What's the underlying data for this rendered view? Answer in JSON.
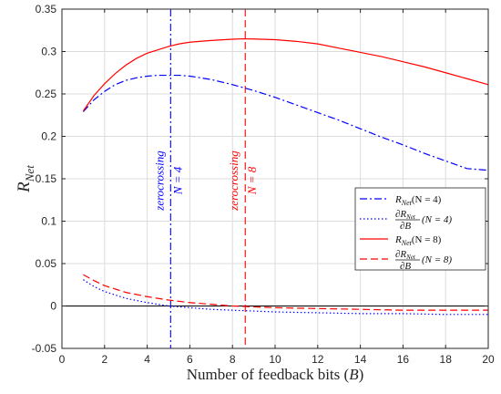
{
  "chart_data": {
    "type": "line",
    "title": "",
    "xlabel": "Number of feedback bits (B)",
    "ylabel": "R_Net",
    "xlim": [
      0,
      20
    ],
    "ylim": [
      -0.05,
      0.35
    ],
    "xticks": [
      0,
      2,
      4,
      6,
      8,
      10,
      12,
      14,
      16,
      18,
      20
    ],
    "yticks": [
      -0.05,
      0,
      0.05,
      0.1,
      0.15,
      0.2,
      0.25,
      0.3,
      0.35
    ],
    "xtick_labels": [
      "0",
      "2",
      "4",
      "6",
      "8",
      "10",
      "12",
      "14",
      "16",
      "18",
      "20"
    ],
    "ytick_labels": [
      "-0.05",
      "0",
      "0.05",
      "0.1",
      "0.15",
      "0.2",
      "0.25",
      "0.3",
      "0.35"
    ],
    "grid": true,
    "legend_position": "right",
    "series": [
      {
        "name": "R_Net(N = 4)",
        "color": "#0000ff",
        "dash": "dashdot",
        "x": [
          1,
          1.5,
          2,
          2.5,
          3,
          3.5,
          4,
          4.5,
          5,
          5.5,
          6,
          7,
          8,
          9,
          10,
          11,
          12,
          13,
          14,
          15,
          16,
          17,
          18,
          19,
          20
        ],
        "y": [
          0.229,
          0.243,
          0.253,
          0.261,
          0.266,
          0.269,
          0.271,
          0.272,
          0.272,
          0.272,
          0.271,
          0.267,
          0.261,
          0.254,
          0.246,
          0.237,
          0.228,
          0.219,
          0.209,
          0.199,
          0.19,
          0.18,
          0.171,
          0.162,
          0.16
        ]
      },
      {
        "name": "∂R_Net/∂B (N = 4)",
        "color": "#0000ff",
        "dash": "dotted",
        "x": [
          1,
          1.5,
          2,
          3,
          4,
          5,
          6,
          7,
          8,
          9,
          10,
          12,
          14,
          16,
          18,
          20
        ],
        "y": [
          0.031,
          0.023,
          0.017,
          0.009,
          0.004,
          0.0,
          -0.002,
          -0.004,
          -0.005,
          -0.006,
          -0.007,
          -0.008,
          -0.009,
          -0.009,
          -0.01,
          -0.01
        ]
      },
      {
        "name": "R_Net(N = 8)",
        "color": "#ff0000",
        "dash": "solid",
        "x": [
          1,
          1.5,
          2,
          2.5,
          3,
          3.5,
          4,
          4.5,
          5,
          5.5,
          6,
          7,
          8,
          8.5,
          9,
          10,
          11,
          12,
          13,
          14,
          15,
          16,
          17,
          18,
          19,
          20
        ],
        "y": [
          0.23,
          0.248,
          0.262,
          0.274,
          0.284,
          0.292,
          0.298,
          0.302,
          0.306,
          0.309,
          0.311,
          0.313,
          0.3145,
          0.315,
          0.3148,
          0.314,
          0.312,
          0.309,
          0.304,
          0.299,
          0.294,
          0.288,
          0.282,
          0.275,
          0.268,
          0.261
        ]
      },
      {
        "name": "∂R_Net/∂B (N = 8)",
        "color": "#ff0000",
        "dash": "dashed",
        "x": [
          1,
          1.5,
          2,
          3,
          4,
          5,
          6,
          7,
          8,
          9,
          10,
          12,
          14,
          16,
          18,
          20
        ],
        "y": [
          0.037,
          0.03,
          0.024,
          0.016,
          0.011,
          0.007,
          0.004,
          0.002,
          0.0,
          -0.001,
          -0.002,
          -0.003,
          -0.004,
          -0.005,
          -0.005,
          -0.005
        ]
      }
    ],
    "vlines": [
      {
        "x": 5.1,
        "color": "#0000ff",
        "dash": "dashdot",
        "label_line1": "zerocrossing",
        "label_line2": "N = 4"
      },
      {
        "x": 8.6,
        "color": "#ff0000",
        "dash": "dashed",
        "label_line1": "zerocrossing",
        "label_line2": "N = 8"
      }
    ],
    "hline": {
      "y": 0,
      "color": "#000000"
    }
  }
}
